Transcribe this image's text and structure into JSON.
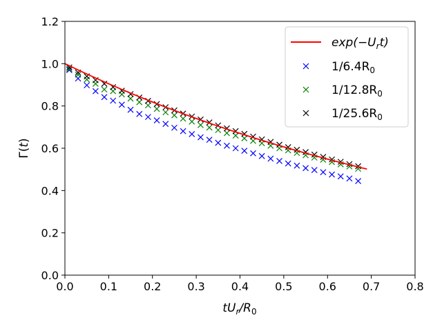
{
  "chart_data": {
    "type": "scatter",
    "xlabel": {
      "base": "tU",
      "sub1": "r",
      "mid": "/R",
      "sub2": "0"
    },
    "ylabel": {
      "base": "Γ(",
      "arg": "t",
      "close": ")"
    },
    "xlim": [
      0,
      0.8
    ],
    "ylim": [
      0,
      1.2
    ],
    "xticks": [
      "0.0",
      "0.1",
      "0.2",
      "0.3",
      "0.4",
      "0.5",
      "0.6",
      "0.7",
      "0.8"
    ],
    "yticks": [
      "0.0",
      "0.2",
      "0.4",
      "0.6",
      "0.8",
      "1.0",
      "1.2"
    ],
    "grid": false,
    "legend_position": "top-right",
    "line": {
      "name": {
        "a": "exp(−U",
        "b": "r",
        "c": "t)"
      },
      "color": "#ff0000",
      "x_start": 0.0,
      "x_end": 0.69
    },
    "series": [
      {
        "name": {
          "a": "1/6.4R",
          "b": "0"
        },
        "color": "#0000ff",
        "x": [
          0.01,
          0.03,
          0.05,
          0.07,
          0.09,
          0.11,
          0.13,
          0.15,
          0.17,
          0.19,
          0.21,
          0.23,
          0.25,
          0.27,
          0.29,
          0.31,
          0.33,
          0.35,
          0.37,
          0.39,
          0.41,
          0.43,
          0.45,
          0.47,
          0.49,
          0.51,
          0.53,
          0.55,
          0.57,
          0.59,
          0.61,
          0.63,
          0.65,
          0.67
        ],
        "y": [
          0.97,
          0.93,
          0.898,
          0.87,
          0.842,
          0.825,
          0.806,
          0.782,
          0.762,
          0.748,
          0.732,
          0.715,
          0.697,
          0.681,
          0.667,
          0.652,
          0.64,
          0.626,
          0.612,
          0.6,
          0.588,
          0.576,
          0.563,
          0.551,
          0.54,
          0.528,
          0.518,
          0.506,
          0.497,
          0.487,
          0.476,
          0.467,
          0.457,
          0.445
        ]
      },
      {
        "name": {
          "a": "1/12.8R",
          "b": "0"
        },
        "color": "#008000",
        "x": [
          0.01,
          0.03,
          0.05,
          0.07,
          0.09,
          0.11,
          0.13,
          0.15,
          0.17,
          0.19,
          0.21,
          0.23,
          0.25,
          0.27,
          0.29,
          0.31,
          0.33,
          0.35,
          0.37,
          0.39,
          0.41,
          0.43,
          0.45,
          0.47,
          0.49,
          0.51,
          0.53,
          0.55,
          0.57,
          0.59,
          0.61,
          0.63,
          0.65,
          0.67
        ],
        "y": [
          0.975,
          0.948,
          0.925,
          0.905,
          0.878,
          0.87,
          0.855,
          0.835,
          0.818,
          0.803,
          0.786,
          0.77,
          0.756,
          0.74,
          0.726,
          0.71,
          0.698,
          0.686,
          0.672,
          0.66,
          0.647,
          0.635,
          0.624,
          0.612,
          0.6,
          0.59,
          0.578,
          0.567,
          0.556,
          0.546,
          0.535,
          0.524,
          0.514,
          0.503
        ]
      },
      {
        "name": {
          "a": "1/25.6R",
          "b": "0"
        },
        "color": "#000000",
        "x": [
          0.01,
          0.03,
          0.05,
          0.07,
          0.09,
          0.11,
          0.13,
          0.15,
          0.17,
          0.19,
          0.21,
          0.23,
          0.25,
          0.27,
          0.29,
          0.31,
          0.33,
          0.35,
          0.37,
          0.39,
          0.41,
          0.43,
          0.45,
          0.47,
          0.49,
          0.51,
          0.53,
          0.55,
          0.57,
          0.59,
          0.61,
          0.63,
          0.65,
          0.67
        ],
        "y": [
          0.982,
          0.958,
          0.94,
          0.922,
          0.905,
          0.889,
          0.872,
          0.856,
          0.84,
          0.824,
          0.809,
          0.794,
          0.779,
          0.764,
          0.75,
          0.736,
          0.722,
          0.708,
          0.694,
          0.681,
          0.668,
          0.655,
          0.642,
          0.63,
          0.617,
          0.605,
          0.593,
          0.582,
          0.57,
          0.559,
          0.547,
          0.536,
          0.525,
          0.515
        ]
      }
    ]
  }
}
